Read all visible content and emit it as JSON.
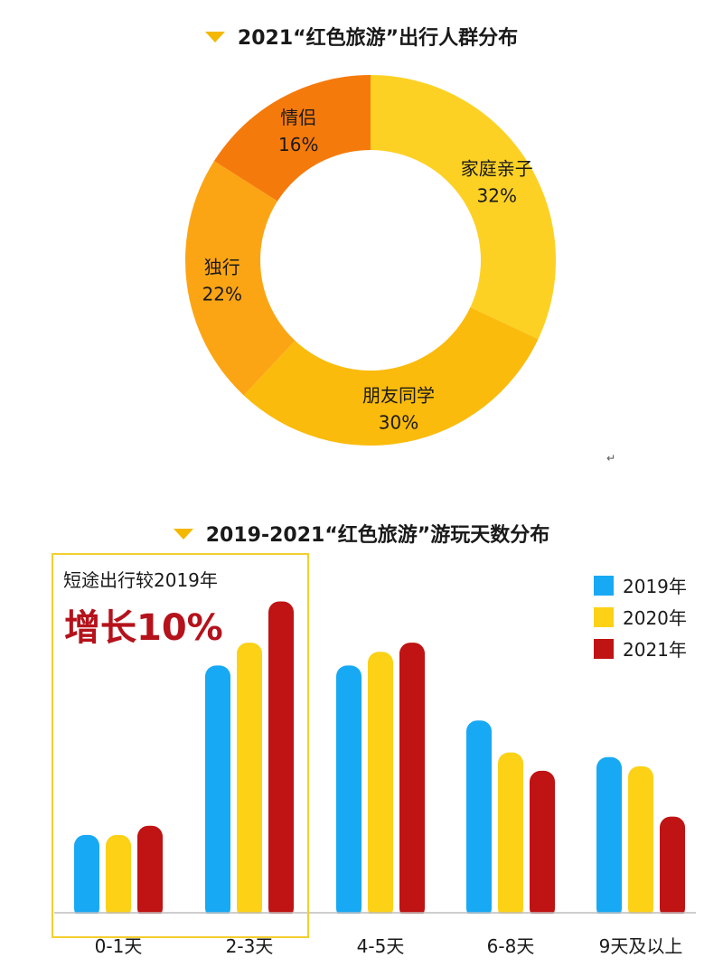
{
  "titles": {
    "donut": "2021“红色旅游”出行人群分布",
    "bars": "2019-2021“红色旅游”游玩天数分布"
  },
  "callout": {
    "line1": "短途出行较2019年",
    "line2": "增长10%"
  },
  "return_mark": "↵",
  "chart_data": [
    {
      "type": "pie",
      "variant": "donut",
      "title": "2021“红色旅游”出行人群分布",
      "categories": [
        "家庭亲子",
        "朋友同学",
        "独行",
        "情侣"
      ],
      "values": [
        32,
        30,
        22,
        16
      ],
      "labels": [
        "32%",
        "30%",
        "22%",
        "16%"
      ],
      "colors": [
        "#fdd124",
        "#fbbb0c",
        "#fca514",
        "#f57a0c"
      ]
    },
    {
      "type": "bar",
      "title": "2019-2021“红色旅游”游玩天数分布",
      "categories": [
        "0-1天",
        "2-3天",
        "4-5天",
        "6-8天",
        "9天及以上"
      ],
      "series": [
        {
          "name": "2019年",
          "color": "#18a9f4",
          "values": [
            17,
            54,
            54,
            42,
            34
          ]
        },
        {
          "name": "2020年",
          "color": "#fcd116",
          "values": [
            17,
            59,
            57,
            35,
            32
          ]
        },
        {
          "name": "2021年",
          "color": "#c01313",
          "values": [
            19,
            68,
            59,
            31,
            21
          ]
        }
      ],
      "ylim": [
        0,
        75
      ],
      "grid": false,
      "legend": "top-right"
    }
  ]
}
